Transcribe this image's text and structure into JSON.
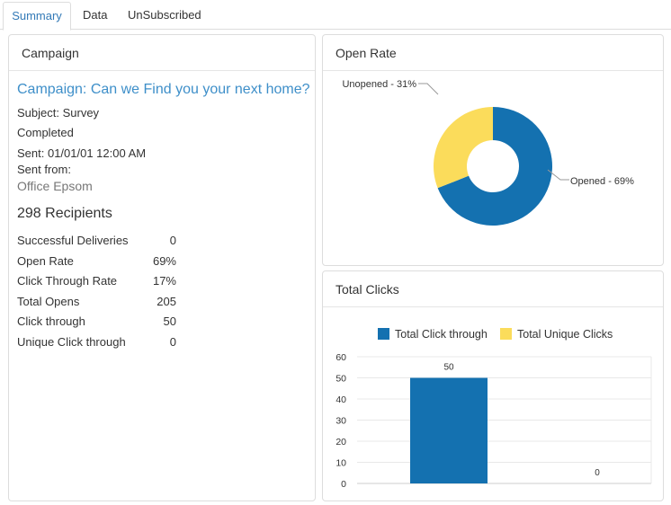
{
  "tabs": [
    {
      "label": "Summary",
      "active": true
    },
    {
      "label": "Data",
      "active": false
    },
    {
      "label": "UnSubscribed",
      "active": false
    }
  ],
  "campaign_panel": {
    "title": "Campaign",
    "campaign_name": "Campaign: Can we Find you your next home?",
    "subject": "Subject: Survey",
    "status": "Completed",
    "sent": "Sent: 01/01/01 12:00 AM",
    "sent_from_label": "Sent from:",
    "sent_from_value": "Office Epsom",
    "recipients": "298 Recipients",
    "stats": [
      {
        "label": "Successful Deliveries",
        "value": "0"
      },
      {
        "label": "Open Rate",
        "value": "69%"
      },
      {
        "label": "Click Through Rate",
        "value": "17%"
      },
      {
        "label": "Total Opens",
        "value": "205"
      },
      {
        "label": "Click through",
        "value": "50"
      },
      {
        "label": "Unique Click through",
        "value": "0"
      }
    ]
  },
  "open_rate_panel": {
    "title": "Open Rate"
  },
  "total_clicks_panel": {
    "title": "Total Clicks"
  },
  "chart_data": [
    {
      "type": "pie",
      "title": "",
      "slices": [
        {
          "label": "Opened - 69%",
          "value": 69,
          "color": "#1471b0"
        },
        {
          "label": "Unopened - 31%",
          "value": 31,
          "color": "#fbdc5b"
        }
      ]
    },
    {
      "type": "bar",
      "title": "",
      "categories": [
        ""
      ],
      "series": [
        {
          "name": "Total Click through",
          "values": [
            50
          ],
          "color": "#1471b0"
        },
        {
          "name": "Total Unique Clicks",
          "values": [
            0
          ],
          "color": "#fbdc5b"
        }
      ],
      "ylim": [
        0,
        60
      ],
      "yticks": [
        "0",
        "10",
        "20",
        "30",
        "40",
        "50",
        "60"
      ],
      "data_labels": [
        "50",
        "0"
      ],
      "legend": "top"
    }
  ]
}
